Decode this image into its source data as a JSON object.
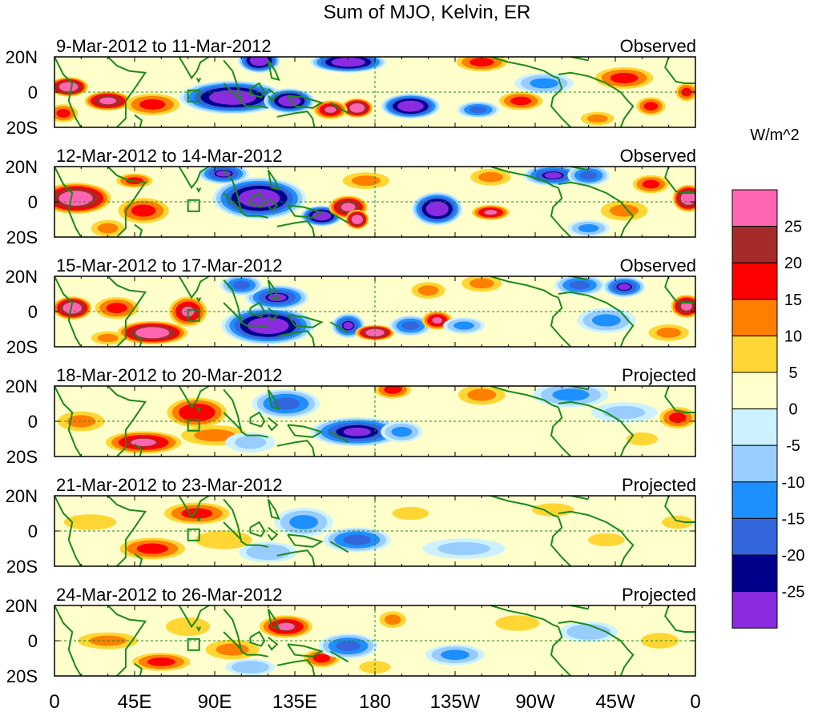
{
  "title": "Sum of MJO, Kelvin, ER",
  "chart_data": {
    "type": "heatmap",
    "title": "Sum of MJO, Kelvin, ER",
    "x_ticks": [
      "0",
      "45E",
      "90E",
      "135E",
      "180",
      "135W",
      "90W",
      "45W",
      "0"
    ],
    "x_tick_lon": [
      0,
      45,
      90,
      135,
      180,
      225,
      270,
      315,
      360
    ],
    "y_ticks": [
      "20N",
      "0",
      "20S"
    ],
    "y_tick_lat": [
      20,
      0,
      -20
    ],
    "xlim": [
      0,
      360
    ],
    "ylim": [
      -20,
      20
    ],
    "colorbar": {
      "unit": "W/m^2",
      "labels": [
        "25",
        "20",
        "15",
        "10",
        "5",
        "0",
        "-5",
        "-10",
        "-15",
        "-20",
        "-25"
      ],
      "colors": [
        "#ff66b2",
        "#a52a2a",
        "#ff0000",
        "#ff7f00",
        "#ffd633",
        "#ffffcc",
        "#ccf2ff",
        "#99ccff",
        "#1e8fff",
        "#3366dd",
        "#00008b",
        "#8a2be2"
      ]
    },
    "panels": [
      {
        "date": "9-Mar-2012 to 11-Mar-2012",
        "status": "Observed",
        "blobs": [
          [
            8,
            3,
            10,
            5,
            28
          ],
          [
            30,
            -5,
            12,
            5,
            25
          ],
          [
            55,
            -7,
            15,
            6,
            15
          ],
          [
            5,
            -12,
            8,
            5,
            15
          ],
          [
            100,
            -3,
            25,
            8,
            -28
          ],
          [
            132,
            -5,
            12,
            6,
            -28
          ],
          [
            115,
            18,
            10,
            6,
            -28
          ],
          [
            170,
            -9,
            8,
            5,
            28
          ],
          [
            155,
            -10,
            9,
            5,
            20
          ],
          [
            200,
            -8,
            14,
            6,
            -28
          ],
          [
            165,
            17,
            18,
            5,
            -28
          ],
          [
            240,
            17,
            14,
            5,
            15
          ],
          [
            262,
            -5,
            12,
            5,
            15
          ],
          [
            238,
            -10,
            10,
            4,
            -15
          ],
          [
            275,
            5,
            14,
            5,
            -10
          ],
          [
            320,
            8,
            16,
            6,
            15
          ],
          [
            335,
            -8,
            8,
            5,
            15
          ],
          [
            305,
            -15,
            10,
            4,
            10
          ],
          [
            355,
            0,
            6,
            5,
            15
          ]
        ]
      },
      {
        "date": "12-Mar-2012 to 14-Mar-2012",
        "status": "Observed",
        "blobs": [
          [
            12,
            2,
            18,
            8,
            28
          ],
          [
            50,
            -5,
            14,
            7,
            15
          ],
          [
            45,
            12,
            10,
            4,
            15
          ],
          [
            30,
            -15,
            10,
            5,
            10
          ],
          [
            115,
            2,
            22,
            10,
            -28
          ],
          [
            95,
            16,
            12,
            5,
            -20
          ],
          [
            150,
            -8,
            10,
            5,
            -28
          ],
          [
            165,
            -3,
            10,
            6,
            25
          ],
          [
            170,
            -10,
            6,
            5,
            28
          ],
          [
            215,
            -4,
            12,
            8,
            -28
          ],
          [
            175,
            12,
            14,
            5,
            10
          ],
          [
            245,
            -6,
            10,
            4,
            20
          ],
          [
            280,
            15,
            14,
            5,
            -20
          ],
          [
            300,
            15,
            10,
            5,
            -15
          ],
          [
            320,
            -5,
            14,
            6,
            10
          ],
          [
            335,
            10,
            10,
            5,
            15
          ],
          [
            356,
            2,
            8,
            7,
            28
          ],
          [
            245,
            14,
            12,
            5,
            10
          ],
          [
            300,
            -15,
            10,
            4,
            -10
          ]
        ]
      },
      {
        "date": "15-Mar-2012 to 17-Mar-2012",
        "status": "Observed",
        "blobs": [
          [
            10,
            2,
            10,
            6,
            28
          ],
          [
            35,
            2,
            12,
            6,
            15
          ],
          [
            55,
            -12,
            18,
            6,
            28
          ],
          [
            75,
            0,
            10,
            8,
            20
          ],
          [
            30,
            -15,
            10,
            4,
            10
          ],
          [
            120,
            -8,
            22,
            9,
            -28
          ],
          [
            125,
            8,
            15,
            6,
            -20
          ],
          [
            105,
            15,
            10,
            5,
            -15
          ],
          [
            165,
            -8,
            8,
            6,
            -20
          ],
          [
            180,
            -12,
            10,
            4,
            28
          ],
          [
            200,
            -8,
            10,
            5,
            -15
          ],
          [
            215,
            -5,
            8,
            5,
            20
          ],
          [
            230,
            -8,
            10,
            4,
            -10
          ],
          [
            210,
            12,
            10,
            5,
            10
          ],
          [
            240,
            16,
            12,
            5,
            10
          ],
          [
            295,
            15,
            12,
            5,
            -15
          ],
          [
            320,
            14,
            10,
            5,
            -20
          ],
          [
            310,
            -5,
            14,
            6,
            -10
          ],
          [
            355,
            3,
            8,
            6,
            25
          ],
          [
            345,
            -12,
            12,
            5,
            10
          ]
        ]
      },
      {
        "date": "18-Mar-2012 to 20-Mar-2012",
        "status": "Projected",
        "blobs": [
          [
            15,
            0,
            14,
            6,
            10
          ],
          [
            50,
            -12,
            20,
            6,
            20
          ],
          [
            80,
            5,
            16,
            8,
            18
          ],
          [
            90,
            -8,
            20,
            6,
            10
          ],
          [
            130,
            10,
            16,
            7,
            -15
          ],
          [
            170,
            -6,
            22,
            7,
            -22
          ],
          [
            195,
            -6,
            10,
            5,
            -10
          ],
          [
            190,
            18,
            10,
            5,
            15
          ],
          [
            240,
            15,
            14,
            6,
            10
          ],
          [
            290,
            15,
            18,
            6,
            -10
          ],
          [
            320,
            5,
            16,
            5,
            -5
          ],
          [
            350,
            2,
            10,
            6,
            15
          ],
          [
            330,
            -10,
            12,
            5,
            5
          ],
          [
            110,
            -12,
            12,
            5,
            -5
          ]
        ]
      },
      {
        "date": "21-Mar-2012 to 23-Mar-2012",
        "status": "Projected",
        "blobs": [
          [
            20,
            5,
            20,
            6,
            5
          ],
          [
            55,
            -10,
            18,
            6,
            15
          ],
          [
            80,
            10,
            18,
            6,
            15
          ],
          [
            95,
            -5,
            18,
            6,
            8
          ],
          [
            140,
            5,
            14,
            7,
            -10
          ],
          [
            170,
            -5,
            16,
            6,
            -15
          ],
          [
            200,
            10,
            14,
            5,
            5
          ],
          [
            230,
            -10,
            20,
            5,
            -5
          ],
          [
            280,
            12,
            16,
            5,
            5
          ],
          [
            310,
            -5,
            14,
            5,
            5
          ],
          [
            350,
            5,
            12,
            5,
            5
          ],
          [
            120,
            -12,
            14,
            5,
            -8
          ]
        ]
      },
      {
        "date": "24-Mar-2012 to 26-Mar-2012",
        "status": "Projected",
        "blobs": [
          [
            30,
            0,
            18,
            5,
            10
          ],
          [
            60,
            -12,
            16,
            5,
            15
          ],
          [
            75,
            8,
            14,
            6,
            8
          ],
          [
            100,
            -5,
            16,
            6,
            10
          ],
          [
            130,
            8,
            14,
            6,
            20
          ],
          [
            150,
            -10,
            10,
            5,
            15
          ],
          [
            165,
            -3,
            14,
            6,
            -15
          ],
          [
            190,
            12,
            8,
            5,
            10
          ],
          [
            180,
            -15,
            10,
            4,
            8
          ],
          [
            225,
            -8,
            14,
            5,
            -10
          ],
          [
            260,
            10,
            14,
            5,
            8
          ],
          [
            300,
            5,
            14,
            5,
            -8
          ],
          [
            340,
            0,
            12,
            5,
            8
          ],
          [
            110,
            -15,
            12,
            4,
            -8
          ]
        ]
      }
    ]
  }
}
